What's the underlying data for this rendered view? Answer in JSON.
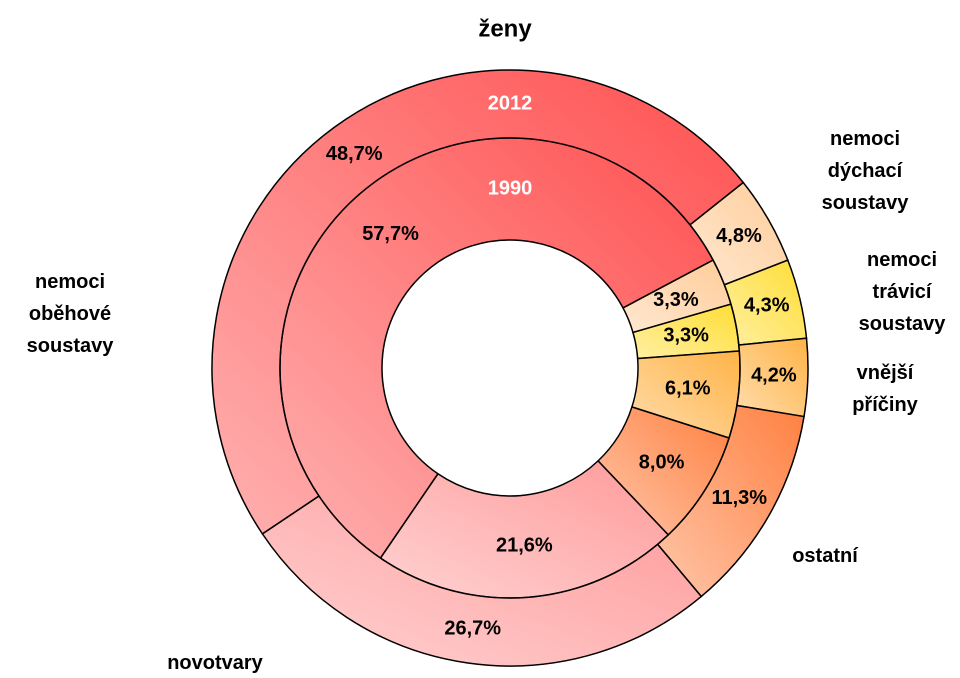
{
  "chart_data": {
    "type": "donut",
    "title": "ženy",
    "categories": [
      "nemoci dýchací soustavy",
      "nemoci trávicí soustavy",
      "vnější příčiny",
      "ostatní",
      "novotvary",
      "nemoci oběhové soustavy"
    ],
    "colors": [
      "#ffcc99",
      "#ffdd33",
      "#ffb347",
      "#ff8040",
      "#ff9a9a",
      "#ff5050"
    ],
    "series": [
      {
        "name": "1990",
        "values": [
          3.3,
          3.3,
          6.1,
          8.0,
          21.6,
          57.7
        ],
        "value_labels": [
          "3,3%",
          "3,3%",
          "6,1%",
          "8,0%",
          "21,6%",
          "57,7%"
        ]
      },
      {
        "name": "2012",
        "values": [
          4.8,
          4.3,
          4.2,
          11.3,
          26.7,
          48.7
        ],
        "value_labels": [
          "4,8%",
          "4,3%",
          "4,2%",
          "11,3%",
          "26,7%",
          "48,7%"
        ]
      }
    ]
  }
}
